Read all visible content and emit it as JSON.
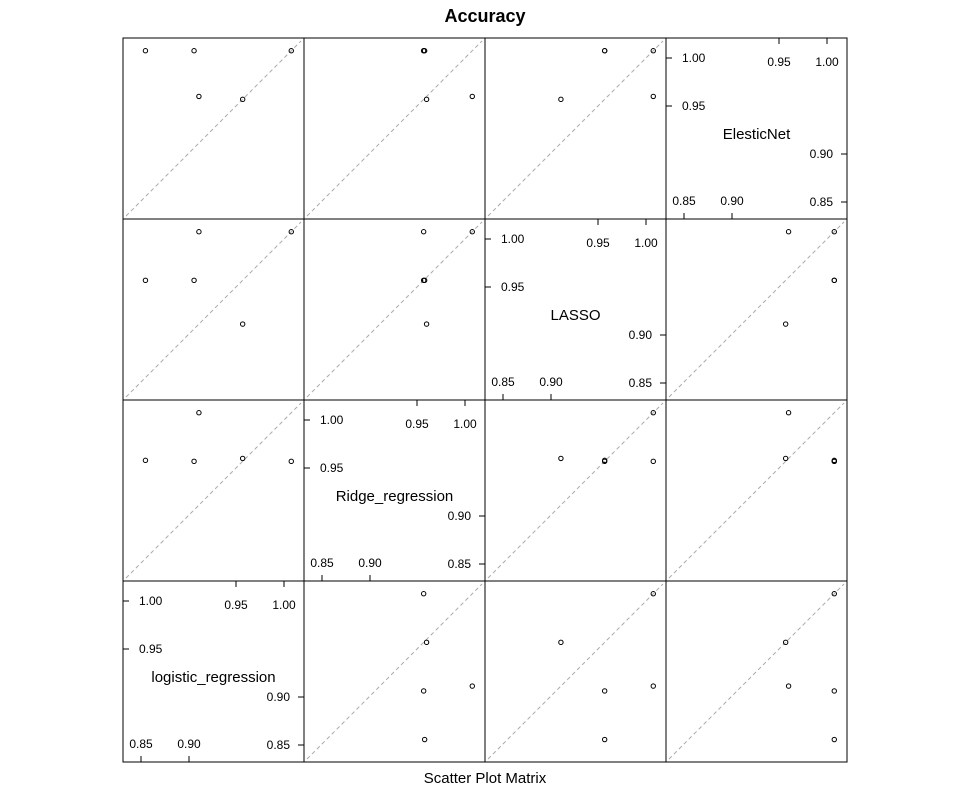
{
  "chart_data": {
    "type": "scatter",
    "title": "Accuracy",
    "xlabel": "Scatter Plot Matrix",
    "ylabel": "",
    "variables": [
      "logistic_regression",
      "Ridge_regression",
      "LASSO",
      "ElesticNet"
    ],
    "diagonal_tick_labels": {
      "low": [
        "0.85",
        "0.90"
      ],
      "high": [
        "0.95",
        "1.00"
      ]
    },
    "axis_range": [
      0.83,
      1.01
    ],
    "reference_line": "y = x (dashed)",
    "grid": false,
    "observations": {
      "logistic_regression": [
        1.0,
        0.95,
        0.905,
        0.9,
        0.85
      ],
      "Ridge_regression": [
        0.95,
        0.953,
        1.0,
        0.95,
        0.951
      ],
      "LASSO": [
        1.0,
        0.905,
        1.0,
        0.95,
        0.95
      ],
      "ElesticNet": [
        1.0,
        0.95,
        0.953,
        1.0,
        1.0
      ]
    }
  }
}
